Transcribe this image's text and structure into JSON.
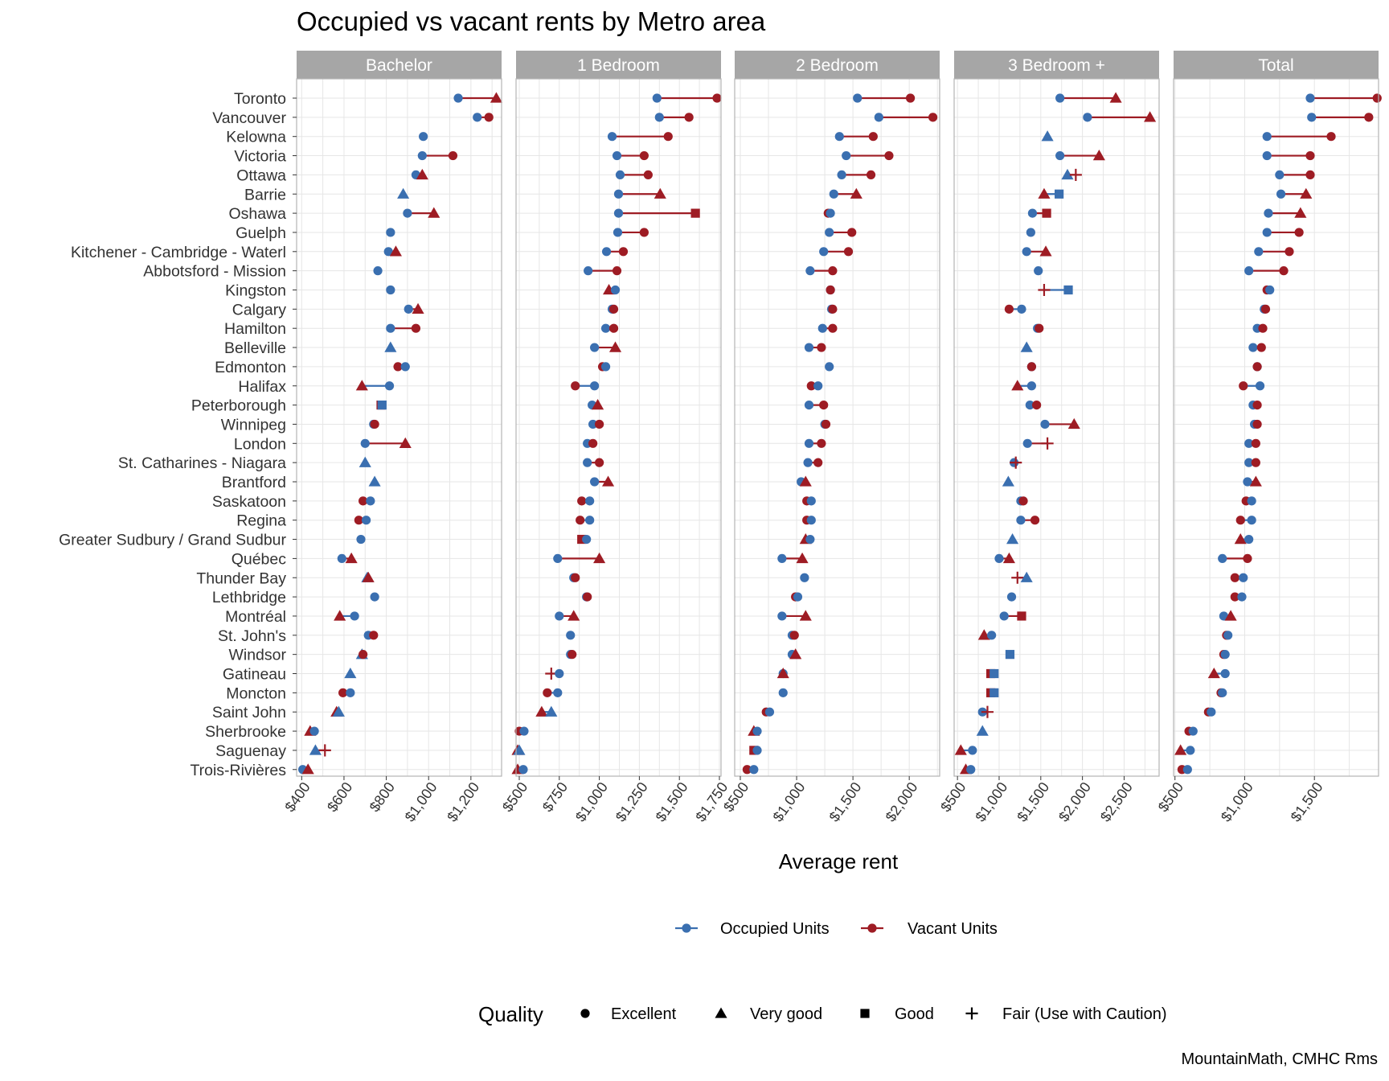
{
  "title": "Occupied vs vacant rents by Metro area",
  "caption": "MountainMath, CMHC Rms",
  "colors": {
    "occupied": "#3a6fb0",
    "vacant": "#9e1c24",
    "strip_bg": "#a6a6a6",
    "grid": "#e6e6e6",
    "panel_border": "#b3b3b3"
  },
  "chart_data": {
    "type": "dumbbell",
    "xlabel": "Average rent",
    "ylabel": "",
    "categories": [
      "Toronto",
      "Vancouver",
      "Kelowna",
      "Victoria",
      "Ottawa",
      "Barrie",
      "Oshawa",
      "Guelph",
      "Kitchener - Cambridge - Waterl",
      "Abbotsford - Mission",
      "Kingston",
      "Calgary",
      "Hamilton",
      "Belleville",
      "Edmonton",
      "Halifax",
      "Peterborough",
      "Winnipeg",
      "London",
      "St. Catharines - Niagara",
      "Brantford",
      "Saskatoon",
      "Regina",
      "Greater Sudbury / Grand Sudbur",
      "Québec",
      "Thunder Bay",
      "Lethbridge",
      "Montréal",
      "St. John's",
      "Windsor",
      "Gatineau",
      "Moncton",
      "Saint John",
      "Sherbrooke",
      "Saguenay",
      "Trois-Rivières"
    ],
    "legend": {
      "series": [
        "Occupied Units",
        "Vacant Units"
      ],
      "quality_title": "Quality",
      "quality_levels": [
        "Excellent",
        "Very good",
        "Good",
        "Fair (Use with Caution)"
      ],
      "placement": "bottom"
    },
    "quality_codes": {
      "E": "Excellent",
      "V": "Very good",
      "G": "Good",
      "F": "Fair (Use with Caution)"
    },
    "panels": [
      {
        "name": "Bachelor",
        "xlim": [
          376,
          1345
        ],
        "ticks": [
          400,
          600,
          800,
          1000,
          1200
        ],
        "tick_labels": [
          "$400",
          "$600",
          "$800",
          "$1,000",
          "$1,200"
        ],
        "occupied": [
          1140,
          1230,
          975,
          970,
          940,
          880,
          900,
          820,
          810,
          760,
          820,
          905,
          820,
          820,
          890,
          815,
          780,
          740,
          700,
          700,
          745,
          725,
          705,
          680,
          590,
          710,
          745,
          650,
          715,
          685,
          630,
          630,
          575,
          460,
          465,
          405
        ],
        "occupied_quality": [
          "E",
          "E",
          "E",
          "E",
          "E",
          "V",
          "E",
          "E",
          "E",
          "E",
          "E",
          "E",
          "E",
          "V",
          "E",
          "E",
          "G",
          "E",
          "E",
          "V",
          "V",
          "E",
          "E",
          "E",
          "E",
          "V",
          "E",
          "E",
          "E",
          "V",
          "V",
          "E",
          "V",
          "E",
          "V",
          "E"
        ],
        "vacant": [
          1320,
          1285,
          null,
          1115,
          970,
          null,
          1025,
          null,
          845,
          null,
          null,
          950,
          940,
          null,
          855,
          685,
          775,
          745,
          890,
          null,
          null,
          690,
          670,
          null,
          635,
          715,
          null,
          580,
          740,
          690,
          null,
          595,
          565,
          440,
          510,
          430
        ],
        "vacant_quality": [
          "V",
          "E",
          null,
          "E",
          "V",
          null,
          "V",
          null,
          "V",
          null,
          null,
          "V",
          "E",
          null,
          "E",
          "V",
          "G",
          "E",
          "V",
          null,
          null,
          "E",
          "E",
          null,
          "V",
          "V",
          null,
          "V",
          "E",
          "E",
          null,
          "E",
          "V",
          "V",
          "F",
          "V"
        ]
      },
      {
        "name": "1 Bedroom",
        "xlim": [
          480,
          1760
        ],
        "ticks": [
          500,
          750,
          1000,
          1250,
          1500,
          1750
        ],
        "tick_labels": [
          "$500",
          "$750",
          "$1,000",
          "$1,250",
          "$1,500",
          "$1,750"
        ],
        "occupied": [
          1360,
          1375,
          1080,
          1110,
          1130,
          1120,
          1120,
          1115,
          1045,
          930,
          1100,
          1080,
          1040,
          970,
          1040,
          970,
          955,
          960,
          925,
          925,
          970,
          940,
          940,
          920,
          740,
          840,
          920,
          750,
          820,
          820,
          750,
          740,
          700,
          530,
          500,
          525
        ],
        "occupied_quality": [
          "E",
          "E",
          "E",
          "E",
          "E",
          "E",
          "E",
          "E",
          "E",
          "E",
          "E",
          "E",
          "E",
          "E",
          "E",
          "E",
          "E",
          "E",
          "E",
          "E",
          "E",
          "E",
          "E",
          "E",
          "E",
          "E",
          "E",
          "E",
          "E",
          "E",
          "E",
          "E",
          "V",
          "E",
          "V",
          "E"
        ],
        "vacant": [
          1735,
          1560,
          1430,
          1280,
          1305,
          1380,
          1600,
          1280,
          1150,
          1110,
          1060,
          1090,
          1090,
          1100,
          1020,
          850,
          990,
          1000,
          960,
          1000,
          1055,
          890,
          880,
          890,
          1000,
          850,
          925,
          840,
          null,
          830,
          700,
          675,
          640,
          500,
          490,
          490
        ],
        "vacant_quality": [
          "E",
          "E",
          "E",
          "E",
          "E",
          "V",
          "G",
          "E",
          "E",
          "E",
          "V",
          "E",
          "E",
          "V",
          "E",
          "E",
          "V",
          "E",
          "E",
          "E",
          "V",
          "E",
          "E",
          "G",
          "V",
          "E",
          "E",
          "V",
          null,
          "E",
          "F",
          "E",
          "V",
          "E",
          "V",
          "V"
        ]
      },
      {
        "name": "2 Bedroom",
        "xlim": [
          450,
          2270
        ],
        "ticks": [
          500,
          1000,
          1500,
          2000
        ],
        "tick_labels": [
          "$500",
          "$1,000",
          "$1,500",
          "$2,000"
        ],
        "occupied": [
          1540,
          1730,
          1380,
          1440,
          1400,
          1330,
          1300,
          1290,
          1240,
          1120,
          1300,
          1310,
          1230,
          1110,
          1290,
          1190,
          1110,
          1250,
          1110,
          1100,
          1040,
          1130,
          1130,
          1120,
          870,
          1070,
          1010,
          870,
          960,
          960,
          880,
          880,
          760,
          650,
          650,
          620
        ],
        "occupied_quality": [
          "E",
          "E",
          "E",
          "E",
          "E",
          "E",
          "E",
          "E",
          "E",
          "E",
          "E",
          "E",
          "E",
          "E",
          "E",
          "E",
          "E",
          "E",
          "E",
          "E",
          "E",
          "E",
          "E",
          "E",
          "E",
          "E",
          "E",
          "E",
          "E",
          "E",
          "E",
          "E",
          "E",
          "E",
          "E",
          "E"
        ],
        "vacant": [
          2010,
          2210,
          1680,
          1820,
          1660,
          1530,
          1280,
          1490,
          1460,
          1320,
          1300,
          1320,
          1320,
          1220,
          null,
          1130,
          1240,
          1260,
          1220,
          1190,
          1080,
          1090,
          1090,
          1080,
          1050,
          null,
          990,
          1080,
          980,
          990,
          880,
          null,
          730,
          620,
          620,
          560
        ],
        "vacant_quality": [
          "E",
          "E",
          "E",
          "E",
          "E",
          "V",
          "E",
          "E",
          "E",
          "E",
          "E",
          "E",
          "E",
          "E",
          null,
          "E",
          "E",
          "E",
          "E",
          "E",
          "V",
          "E",
          "E",
          "V",
          "V",
          null,
          "E",
          "V",
          "E",
          "V",
          "V",
          null,
          "E",
          "V",
          "G",
          "E"
        ],
        "_note": "no"
      },
      {
        "name": "3 Bedroom +",
        "xlim": [
          460,
          2920
        ],
        "ticks": [
          500,
          1000,
          1500,
          2000,
          2500
        ],
        "tick_labels": [
          "$500",
          "$1,000",
          "$1,500",
          "$2,000",
          "$2,500"
        ],
        "occupied": [
          1730,
          2060,
          1580,
          1730,
          1820,
          1720,
          1400,
          1380,
          1330,
          1470,
          1830,
          1270,
          1460,
          1330,
          1390,
          1390,
          1370,
          1550,
          1340,
          1180,
          1110,
          1260,
          1260,
          1160,
          1000,
          1330,
          1150,
          1060,
          910,
          1130,
          940,
          940,
          800,
          800,
          680,
          660
        ],
        "occupied_quality": [
          "E",
          "E",
          "V",
          "E",
          "V",
          "G",
          "E",
          "E",
          "E",
          "E",
          "G",
          "E",
          "E",
          "V",
          "E",
          "E",
          "E",
          "E",
          "E",
          "E",
          "V",
          "E",
          "E",
          "V",
          "E",
          "V",
          "E",
          "E",
          "E",
          "G",
          "G",
          "G",
          "E",
          "V",
          "E",
          "E"
        ],
        "vacant": [
          2400,
          2810,
          null,
          2200,
          1920,
          1540,
          1570,
          null,
          1560,
          null,
          1540,
          1120,
          1480,
          null,
          1390,
          1220,
          1450,
          1900,
          1580,
          1200,
          null,
          1290,
          1430,
          null,
          1120,
          1220,
          null,
          1270,
          820,
          null,
          900,
          900,
          860,
          null,
          540,
          600
        ],
        "vacant_quality": [
          "V",
          "V",
          null,
          "V",
          "F",
          "V",
          "G",
          null,
          "V",
          null,
          "F",
          "E",
          "E",
          null,
          "E",
          "V",
          "E",
          "V",
          "F",
          "F",
          null,
          "E",
          "E",
          null,
          "V",
          "F",
          null,
          "G",
          "V",
          null,
          "G",
          "G",
          "F",
          null,
          "V",
          "V"
        ]
      },
      {
        "name": "Total",
        "xlim": [
          490,
          1960
        ],
        "ticks": [
          500,
          1000,
          1500
        ],
        "tick_labels": [
          "$500",
          "$1,000",
          "$1,500"
        ],
        "occupied": [
          1470,
          1480,
          1160,
          1160,
          1250,
          1260,
          1170,
          1160,
          1100,
          1030,
          1180,
          1140,
          1090,
          1060,
          1090,
          1110,
          1060,
          1070,
          1030,
          1030,
          1020,
          1050,
          1050,
          1030,
          840,
          990,
          980,
          850,
          880,
          860,
          860,
          840,
          760,
          630,
          610,
          590
        ],
        "occupied_quality": [
          "E",
          "E",
          "E",
          "E",
          "E",
          "E",
          "E",
          "E",
          "E",
          "E",
          "E",
          "E",
          "E",
          "E",
          "E",
          "E",
          "E",
          "E",
          "E",
          "E",
          "E",
          "E",
          "E",
          "E",
          "E",
          "E",
          "E",
          "E",
          "E",
          "E",
          "E",
          "E",
          "E",
          "E",
          "E",
          "E"
        ],
        "vacant": [
          1950,
          1890,
          1620,
          1470,
          1470,
          1440,
          1400,
          1390,
          1320,
          1280,
          1160,
          1150,
          1130,
          1120,
          1090,
          990,
          1090,
          1090,
          1080,
          1080,
          1080,
          1010,
          970,
          970,
          1020,
          930,
          930,
          900,
          870,
          850,
          780,
          830,
          740,
          600,
          540,
          550
        ],
        "vacant_quality": [
          "E",
          "E",
          "E",
          "E",
          "E",
          "V",
          "V",
          "E",
          "E",
          "E",
          "E",
          "E",
          "E",
          "E",
          "E",
          "E",
          "E",
          "E",
          "E",
          "E",
          "V",
          "E",
          "E",
          "V",
          "E",
          "E",
          "E",
          "V",
          "E",
          "E",
          "V",
          "E",
          "E",
          "E",
          "V",
          "E"
        ]
      }
    ]
  }
}
